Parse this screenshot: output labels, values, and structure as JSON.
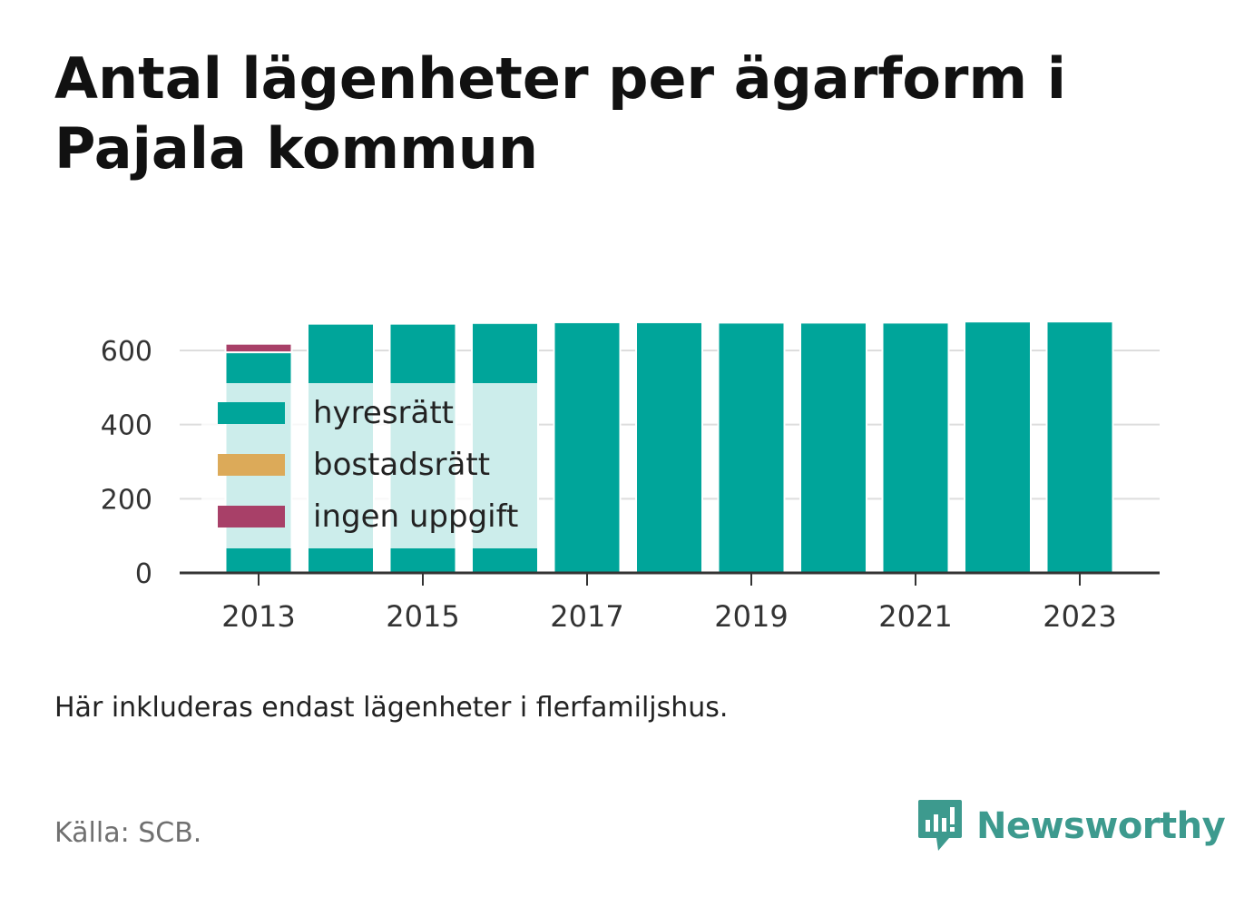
{
  "title": "Antal lägenheter per ägarform i Pajala kommun",
  "note": "Här inkluderas endast lägenheter i flerfamiljshus.",
  "source": "Källa: SCB.",
  "brand": {
    "name": "Newsworthy",
    "icon": "newsworthy-logo-icon",
    "color": "#3d9a8e"
  },
  "chart_data": {
    "type": "bar",
    "stacked": true,
    "title": "Antal lägenheter per ägarform i Pajala kommun",
    "xlabel": "",
    "ylabel": "",
    "categories": [
      "2013",
      "2014",
      "2015",
      "2016",
      "2017",
      "2018",
      "2019",
      "2020",
      "2021",
      "2022",
      "2023"
    ],
    "x_tick_labels": [
      "2013",
      "2015",
      "2017",
      "2019",
      "2021",
      "2023"
    ],
    "y_ticks": [
      0,
      200,
      400,
      600
    ],
    "ylim": [
      0,
      700
    ],
    "grid": true,
    "legend_position": "inside-left",
    "series": [
      {
        "name": "hyresrätt",
        "color": "#00a59a",
        "values": [
          595,
          672,
          672,
          674,
          676,
          676,
          675,
          675,
          675,
          678,
          678
        ]
      },
      {
        "name": "bostadsrätt",
        "color": "#dcaa59",
        "values": [
          0,
          0,
          0,
          0,
          0,
          0,
          0,
          0,
          0,
          0,
          0
        ]
      },
      {
        "name": "ingen uppgift",
        "color": "#a84068",
        "values": [
          23,
          0,
          0,
          0,
          0,
          0,
          0,
          0,
          0,
          0,
          0
        ]
      }
    ]
  }
}
